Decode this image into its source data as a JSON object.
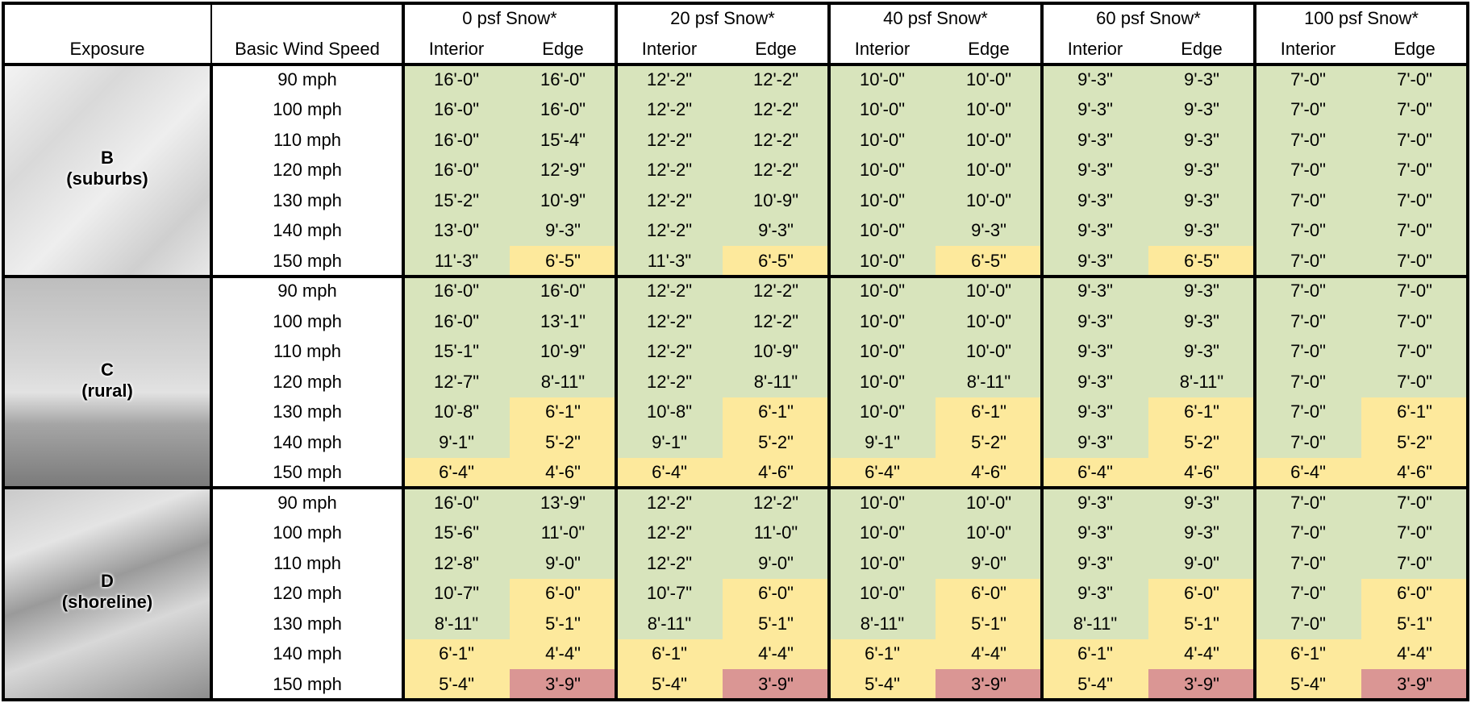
{
  "header": {
    "exposure": "Exposure",
    "wind": "Basic Wind Speed",
    "snow_loads": [
      "0 psf Snow*",
      "20 psf Snow*",
      "40 psf Snow*",
      "60 psf Snow*",
      "100 psf Snow*"
    ],
    "sub": [
      "Interior",
      "Edge"
    ]
  },
  "palette": {
    "G": "#d8e4bc",
    "Y": "#fde99c",
    "R": "#da9694"
  },
  "groups": [
    {
      "label": [
        "B",
        "(suburbs)"
      ],
      "rows": [
        {
          "speed": "90 mph",
          "cells": [
            "16'-0\"",
            "16'-0\"",
            "12'-2\"",
            "12'-2\"",
            "10'-0\"",
            "10'-0\"",
            "9'-3\"",
            "9'-3\"",
            "7'-0\"",
            "7'-0\""
          ],
          "colors": "GGGGGGGGGG"
        },
        {
          "speed": "100 mph",
          "cells": [
            "16'-0\"",
            "16'-0\"",
            "12'-2\"",
            "12'-2\"",
            "10'-0\"",
            "10'-0\"",
            "9'-3\"",
            "9'-3\"",
            "7'-0\"",
            "7'-0\""
          ],
          "colors": "GGGGGGGGGG"
        },
        {
          "speed": "110 mph",
          "cells": [
            "16'-0\"",
            "15'-4\"",
            "12'-2\"",
            "12'-2\"",
            "10'-0\"",
            "10'-0\"",
            "9'-3\"",
            "9'-3\"",
            "7'-0\"",
            "7'-0\""
          ],
          "colors": "GGGGGGGGGG"
        },
        {
          "speed": "120 mph",
          "cells": [
            "16'-0\"",
            "12'-9\"",
            "12'-2\"",
            "12'-2\"",
            "10'-0\"",
            "10'-0\"",
            "9'-3\"",
            "9'-3\"",
            "7'-0\"",
            "7'-0\""
          ],
          "colors": "GGGGGGGGGG"
        },
        {
          "speed": "130 mph",
          "cells": [
            "15'-2\"",
            "10'-9\"",
            "12'-2\"",
            "10'-9\"",
            "10'-0\"",
            "10'-0\"",
            "9'-3\"",
            "9'-3\"",
            "7'-0\"",
            "7'-0\""
          ],
          "colors": "GGGGGGGGGG"
        },
        {
          "speed": "140 mph",
          "cells": [
            "13'-0\"",
            "9'-3\"",
            "12'-2\"",
            "9'-3\"",
            "10'-0\"",
            "9'-3\"",
            "9'-3\"",
            "9'-3\"",
            "7'-0\"",
            "7'-0\""
          ],
          "colors": "GGGGGGGGGG"
        },
        {
          "speed": "150 mph",
          "cells": [
            "11'-3\"",
            "6'-5\"",
            "11'-3\"",
            "6'-5\"",
            "10'-0\"",
            "6'-5\"",
            "9'-3\"",
            "6'-5\"",
            "7'-0\"",
            "7'-0\""
          ],
          "colors": "GYGYGYGYGG"
        }
      ]
    },
    {
      "label": [
        "C",
        "(rural)"
      ],
      "rows": [
        {
          "speed": "90 mph",
          "cells": [
            "16'-0\"",
            "16'-0\"",
            "12'-2\"",
            "12'-2\"",
            "10'-0\"",
            "10'-0\"",
            "9'-3\"",
            "9'-3\"",
            "7'-0\"",
            "7'-0\""
          ],
          "colors": "GGGGGGGGGG"
        },
        {
          "speed": "100 mph",
          "cells": [
            "16'-0\"",
            "13'-1\"",
            "12'-2\"",
            "12'-2\"",
            "10'-0\"",
            "10'-0\"",
            "9'-3\"",
            "9'-3\"",
            "7'-0\"",
            "7'-0\""
          ],
          "colors": "GGGGGGGGGG"
        },
        {
          "speed": "110 mph",
          "cells": [
            "15'-1\"",
            "10'-9\"",
            "12'-2\"",
            "10'-9\"",
            "10'-0\"",
            "10'-0\"",
            "9'-3\"",
            "9'-3\"",
            "7'-0\"",
            "7'-0\""
          ],
          "colors": "GGGGGGGGGG"
        },
        {
          "speed": "120 mph",
          "cells": [
            "12'-7\"",
            "8'-11\"",
            "12'-2\"",
            "8'-11\"",
            "10'-0\"",
            "8'-11\"",
            "9'-3\"",
            "8'-11\"",
            "7'-0\"",
            "7'-0\""
          ],
          "colors": "GGGGGGGGGG"
        },
        {
          "speed": "130 mph",
          "cells": [
            "10'-8\"",
            "6'-1\"",
            "10'-8\"",
            "6'-1\"",
            "10'-0\"",
            "6'-1\"",
            "9'-3\"",
            "6'-1\"",
            "7'-0\"",
            "6'-1\""
          ],
          "colors": "GYGYGYGYGY"
        },
        {
          "speed": "140 mph",
          "cells": [
            "9'-1\"",
            "5'-2\"",
            "9'-1\"",
            "5'-2\"",
            "9'-1\"",
            "5'-2\"",
            "9'-3\"",
            "5'-2\"",
            "7'-0\"",
            "5'-2\""
          ],
          "colors": "GYGYGYGYGY"
        },
        {
          "speed": "150 mph",
          "cells": [
            "6'-4\"",
            "4'-6\"",
            "6'-4\"",
            "4'-6\"",
            "6'-4\"",
            "4'-6\"",
            "6'-4\"",
            "4'-6\"",
            "6'-4\"",
            "4'-6\""
          ],
          "colors": "YYYYYYYYYY"
        }
      ]
    },
    {
      "label": [
        "D",
        "(shoreline)"
      ],
      "rows": [
        {
          "speed": "90 mph",
          "cells": [
            "16'-0\"",
            "13'-9\"",
            "12'-2\"",
            "12'-2\"",
            "10'-0\"",
            "10'-0\"",
            "9'-3\"",
            "9'-3\"",
            "7'-0\"",
            "7'-0\""
          ],
          "colors": "GGGGGGGGGG"
        },
        {
          "speed": "100 mph",
          "cells": [
            "15'-6\"",
            "11'-0\"",
            "12'-2\"",
            "11'-0\"",
            "10'-0\"",
            "10'-0\"",
            "9'-3\"",
            "9'-3\"",
            "7'-0\"",
            "7'-0\""
          ],
          "colors": "GGGGGGGGGG"
        },
        {
          "speed": "110 mph",
          "cells": [
            "12'-8\"",
            "9'-0\"",
            "12'-2\"",
            "9'-0\"",
            "10'-0\"",
            "9'-0\"",
            "9'-3\"",
            "9'-0\"",
            "7'-0\"",
            "7'-0\""
          ],
          "colors": "GGGGGGGGGG"
        },
        {
          "speed": "120 mph",
          "cells": [
            "10'-7\"",
            "6'-0\"",
            "10'-7\"",
            "6'-0\"",
            "10'-0\"",
            "6'-0\"",
            "9'-3\"",
            "6'-0\"",
            "7'-0\"",
            "6'-0\""
          ],
          "colors": "GYGYGYGYGY"
        },
        {
          "speed": "130 mph",
          "cells": [
            "8'-11\"",
            "5'-1\"",
            "8'-11\"",
            "5'-1\"",
            "8'-11\"",
            "5'-1\"",
            "8'-11\"",
            "5'-1\"",
            "7'-0\"",
            "5'-1\""
          ],
          "colors": "GYGYGYGYGY"
        },
        {
          "speed": "140 mph",
          "cells": [
            "6'-1\"",
            "4'-4\"",
            "6'-1\"",
            "4'-4\"",
            "6'-1\"",
            "4'-4\"",
            "6'-1\"",
            "4'-4\"",
            "6'-1\"",
            "4'-4\""
          ],
          "colors": "YYYYYYYYYY"
        },
        {
          "speed": "150 mph",
          "cells": [
            "5'-4\"",
            "3'-9\"",
            "5'-4\"",
            "3'-9\"",
            "5'-4\"",
            "3'-9\"",
            "5'-4\"",
            "3'-9\"",
            "5'-4\"",
            "3'-9\""
          ],
          "colors": "YRYRYRYRYR"
        }
      ]
    }
  ]
}
